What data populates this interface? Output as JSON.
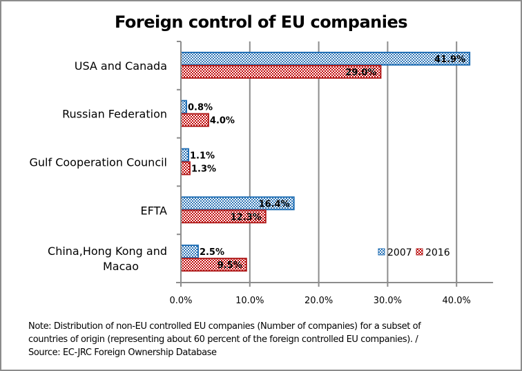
{
  "chart_data": {
    "type": "bar",
    "orientation": "horizontal",
    "title": "Foreign control of EU companies",
    "categories": [
      "USA and Canada",
      "Russian Federation",
      "Gulf Cooperation Council",
      "EFTA",
      "China,Hong Kong and Macao"
    ],
    "category_label_lines": [
      [
        "USA and Canada"
      ],
      [
        "Russian Federation"
      ],
      [
        "Gulf Cooperation Council"
      ],
      [
        "EFTA"
      ],
      [
        "China,Hong Kong and",
        "Macao"
      ]
    ],
    "series": [
      {
        "name": "2007",
        "values": [
          41.9,
          0.8,
          1.1,
          16.4,
          2.5
        ],
        "labels": [
          "41.9%",
          "0.8%",
          "1.1%",
          "16.4%",
          "2.5%"
        ],
        "color": "#2e75b6",
        "border": "#1f6eb4"
      },
      {
        "name": "2016",
        "values": [
          29.0,
          4.0,
          1.3,
          12.3,
          9.5
        ],
        "labels": [
          "29.0%",
          "4.0%",
          "1.3%",
          "12.3%",
          "9.5%"
        ],
        "color": "#c0504d",
        "border": "#b01e1e"
      }
    ],
    "xlabel": "",
    "ylabel": "",
    "xlim": [
      0,
      45
    ],
    "xticks": [
      0,
      10,
      20,
      30,
      40
    ],
    "xtick_labels": [
      "0.0%",
      "10.0%",
      "20.0%",
      "30.0%",
      "40.0%"
    ],
    "grid": "vertical major gridlines",
    "legend": {
      "position": "bottom-right inside plot",
      "entries": [
        "2007",
        "2016"
      ]
    }
  },
  "note": {
    "lines": [
      "Note: Distribution of non-EU controlled EU companies (Number of companies) for a subset of",
      "countries of origin (representing about 60 percent of the foreign controlled EU companies). /",
      "Source: EC-JRC Foreign Ownership Database"
    ]
  }
}
